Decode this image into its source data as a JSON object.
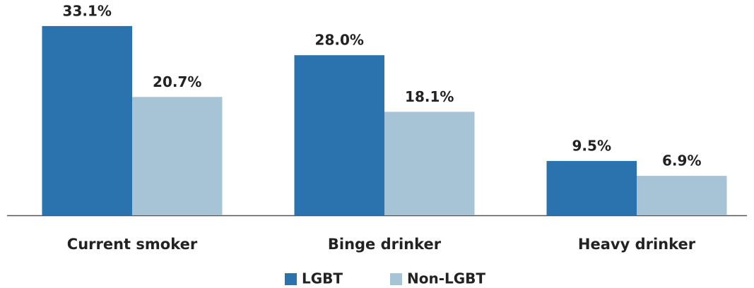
{
  "chart_data": {
    "type": "bar",
    "categories": [
      "Current smoker",
      "Binge drinker",
      "Heavy drinker"
    ],
    "series": [
      {
        "name": "LGBT",
        "color": "#2a73ae",
        "values": [
          33.1,
          28.0,
          9.5
        ],
        "value_labels": [
          "33.1%",
          "28.0%",
          "9.5%"
        ]
      },
      {
        "name": "Non-LGBT",
        "color": "#a7c4d7",
        "values": [
          20.7,
          18.1,
          6.9
        ],
        "value_labels": [
          "20.7%",
          "18.1%",
          "6.9%"
        ]
      }
    ],
    "legend": "bottom"
  }
}
